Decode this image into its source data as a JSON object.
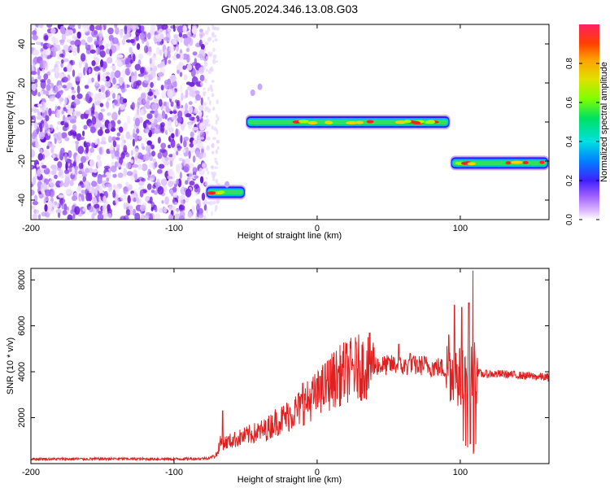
{
  "figure": {
    "title": "GN05.2024.346.13.08.G03"
  },
  "colors": {
    "snr_line": "#e02020",
    "axes": "#000000",
    "noise_purple": "#7b2ae0"
  },
  "chart_data": [
    {
      "type": "heatmap",
      "xlabel": "Height of straight line (km)",
      "ylabel": "Frequency (Hz)",
      "xlim": [
        -200,
        162
      ],
      "ylim": [
        -50,
        50
      ],
      "x_ticks": [
        -200,
        -100,
        0,
        100
      ],
      "x_tick_labels": [
        "-200",
        "-100",
        "0",
        "100"
      ],
      "y_ticks": [
        -40,
        -20,
        0,
        20,
        40
      ],
      "y_tick_labels": [
        "-40",
        "-20",
        "0",
        "20",
        "40"
      ],
      "noise_region": {
        "x_from": -200,
        "x_to": -78,
        "y_from": -50,
        "y_to": 50
      },
      "tracks": [
        {
          "x_start": -78,
          "x_end": -50,
          "frequency": -36
        },
        {
          "x_start": -50,
          "x_end": 93,
          "frequency": 0
        },
        {
          "x_start": 93,
          "x_end": 162,
          "frequency": -21
        }
      ],
      "extra_blobs": [
        {
          "x": -40,
          "frequency": 18
        },
        {
          "x": -45,
          "frequency": 15
        },
        {
          "x": -63,
          "frequency": -32
        }
      ],
      "colorbar": {
        "label": "Normalized spectral amplitude",
        "range": [
          0,
          1
        ],
        "ticks": [
          0.0,
          0.2,
          0.4,
          0.6,
          0.8
        ],
        "tick_labels": [
          "0.0",
          "0.2",
          "0.4",
          "0.6",
          "0.8"
        ]
      }
    },
    {
      "type": "line",
      "xlabel": "Height of straight line (km)",
      "ylabel": "SNR (10 * v/v)",
      "xlim": [
        -200,
        162
      ],
      "ylim": [
        0,
        8500
      ],
      "x_ticks": [
        -200,
        -100,
        0,
        100
      ],
      "x_tick_labels": [
        "-200",
        "-100",
        "0",
        "100"
      ],
      "y_ticks": [
        2000,
        4000,
        6000,
        8000
      ],
      "y_tick_labels": [
        "2000",
        "4000",
        "6000",
        "8000"
      ],
      "series": [
        {
          "x": [
            -200,
            -180,
            -160,
            -140,
            -120,
            -100,
            -90,
            -80,
            -75,
            -70,
            -68,
            -65,
            -60,
            -55,
            -50,
            -45,
            -40,
            -35,
            -30,
            -25,
            -20,
            -15,
            -10,
            -5,
            0,
            5,
            10,
            15,
            20,
            25,
            30,
            35,
            40,
            45,
            50,
            55,
            60,
            65,
            70,
            75,
            80,
            85,
            90,
            95,
            100,
            105,
            108,
            110,
            115,
            120,
            130,
            140,
            150,
            162
          ],
          "y": [
            200,
            200,
            200,
            210,
            200,
            200,
            210,
            220,
            250,
            400,
            900,
            900,
            1000,
            1100,
            1200,
            1300,
            1400,
            1500,
            1800,
            1900,
            2100,
            2300,
            2500,
            2800,
            3000,
            3300,
            3600,
            3800,
            4000,
            4100,
            4200,
            4200,
            4300,
            4250,
            4300,
            4300,
            4200,
            4300,
            4250,
            4300,
            4200,
            4200,
            4100,
            4000,
            3700,
            3700,
            3900,
            4000,
            3900,
            3900,
            3900,
            3850,
            3800,
            3750
          ],
          "spikes": [
            {
              "x": -66,
              "y": 2300
            },
            {
              "x": -10,
              "y": 3500
            },
            {
              "x": 2,
              "y": 3800
            },
            {
              "x": 38,
              "y": 4900
            },
            {
              "x": 57,
              "y": 5200
            },
            {
              "x": 65,
              "y": 4800
            },
            {
              "x": 92,
              "y": 5600
            },
            {
              "x": 96,
              "y": 6900
            },
            {
              "x": 101,
              "y": 6800
            },
            {
              "x": 106,
              "y": 7000
            },
            {
              "x": 109,
              "y": 8400
            }
          ]
        }
      ]
    }
  ]
}
